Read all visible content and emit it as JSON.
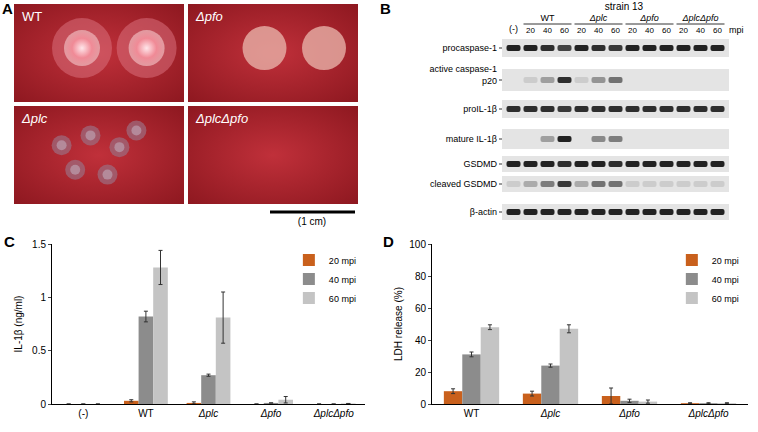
{
  "panels": {
    "A": {
      "label": "A",
      "plates": [
        "WT",
        "Δpfo",
        "Δplc",
        "ΔplcΔpfo"
      ],
      "scale_bar": "(1 cm)"
    },
    "B": {
      "label": "B",
      "strain": "strain 13",
      "control": "(-)",
      "groups": [
        "WT",
        "Δplc",
        "Δpfo",
        "ΔplcΔpfo"
      ],
      "times": [
        20,
        40,
        60
      ],
      "time_unit": "mpi",
      "rows": [
        {
          "label": "procaspase-1",
          "intensity": [
            0.85,
            0.85,
            0.8,
            0.7,
            0.85,
            0.8,
            0.75,
            0.85,
            0.85,
            0.85,
            0.85,
            0.85,
            0.85
          ]
        },
        {
          "label": "active caspase-1 p20",
          "intensity": [
            0,
            0.1,
            0.3,
            0.8,
            0.1,
            0.35,
            0.5,
            0,
            0,
            0,
            0,
            0,
            0
          ]
        },
        {
          "label": "proIL-1β",
          "intensity": [
            0.8,
            0.8,
            0.8,
            0.75,
            0.8,
            0.8,
            0.8,
            0.8,
            0.8,
            0.8,
            0.8,
            0.8,
            0.8
          ]
        },
        {
          "label": "mature IL-1β",
          "intensity": [
            0,
            0,
            0.3,
            0.85,
            0,
            0.4,
            0.45,
            0,
            0,
            0,
            0,
            0,
            0
          ]
        },
        {
          "label": "GSDMD",
          "intensity": [
            0.85,
            0.85,
            0.85,
            0.8,
            0.85,
            0.85,
            0.8,
            0.85,
            0.85,
            0.85,
            0.85,
            0.85,
            0.85
          ]
        },
        {
          "label": "cleaved GSDMD",
          "intensity": [
            0.1,
            0.25,
            0.45,
            0.75,
            0.25,
            0.5,
            0.5,
            0.1,
            0.1,
            0.1,
            0.1,
            0.1,
            0.1
          ]
        },
        {
          "label": "β-actin",
          "intensity": [
            0.85,
            0.85,
            0.85,
            0.85,
            0.85,
            0.85,
            0.85,
            0.85,
            0.85,
            0.85,
            0.85,
            0.85,
            0.85
          ]
        }
      ]
    }
  },
  "chart_data": [
    {
      "type": "bar",
      "label": "C",
      "y_label": "IL-1β (ng/ml)",
      "categories": [
        "(-)",
        "WT",
        "Δplc",
        "Δpfo",
        "ΔplcΔpfo"
      ],
      "series": [
        {
          "name": "20 mpi",
          "color": "#c9601c",
          "values": [
            0,
            0.03,
            0.01,
            0,
            0
          ],
          "errors": [
            0,
            0.01,
            0.01,
            0,
            0
          ]
        },
        {
          "name": "40 mpi",
          "color": "#8c8c8c",
          "values": [
            0,
            0.82,
            0.27,
            0.01,
            0
          ],
          "errors": [
            0,
            0.05,
            0.01,
            0,
            0
          ]
        },
        {
          "name": "60 mpi",
          "color": "#c4c4c4",
          "values": [
            0,
            1.28,
            0.81,
            0.04,
            0.005
          ],
          "errors": [
            0,
            0.16,
            0.24,
            0.03,
            0
          ]
        }
      ],
      "ylim": [
        0,
        1.5
      ],
      "yticks": [
        0,
        0.5,
        1,
        1.5
      ],
      "legend": "upper right",
      "grid": false
    },
    {
      "type": "bar",
      "label": "D",
      "y_label": "LDH release (%)",
      "categories": [
        "WT",
        "Δplc",
        "Δpfo",
        "ΔplcΔpfo"
      ],
      "series": [
        {
          "name": "20 mpi",
          "color": "#c9601c",
          "values": [
            8,
            6.5,
            5,
            0.5
          ],
          "errors": [
            1.5,
            1.5,
            5,
            0.3
          ]
        },
        {
          "name": "40 mpi",
          "color": "#8c8c8c",
          "values": [
            31,
            24,
            2,
            0.5
          ],
          "errors": [
            1.5,
            1,
            1,
            0.3
          ]
        },
        {
          "name": "60 mpi",
          "color": "#c4c4c4",
          "values": [
            48,
            47,
            1.5,
            0.5
          ],
          "errors": [
            1.5,
            2.5,
            1,
            0.3
          ]
        }
      ],
      "ylim": [
        0,
        100
      ],
      "yticks": [
        0,
        20,
        40,
        60,
        80,
        100
      ],
      "legend": "upper right",
      "grid": false
    }
  ]
}
